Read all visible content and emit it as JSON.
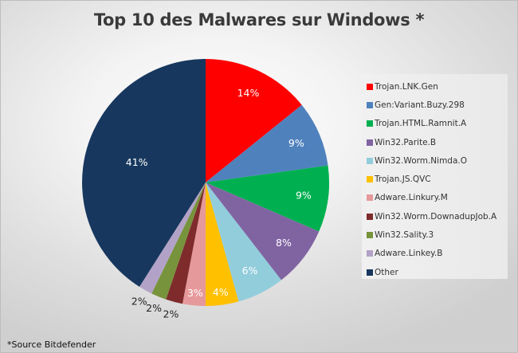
{
  "chart_data": {
    "type": "pie",
    "title": "Top 10 des Malwares sur Windows *",
    "footnote": "*Source Bitdefender",
    "legend_position": "right",
    "start_angle_deg": 0,
    "direction": "clockwise",
    "slices": [
      {
        "label": "Trojan.LNK.Gen",
        "value": 14.2,
        "display": "14%",
        "color": "#ff0000",
        "label_color": "#ffffff"
      },
      {
        "label": "Gen:Variant.Buzy.298",
        "value": 8.6,
        "display": "9%",
        "color": "#4f81bd",
        "label_color": "#ffffff"
      },
      {
        "label": "Trojan.HTML.Ramnit.A",
        "value": 8.7,
        "display": "9%",
        "color": "#00b050",
        "label_color": "#ffffff"
      },
      {
        "label": "Win32.Parite.B",
        "value": 8.0,
        "display": "8%",
        "color": "#8064a2",
        "label_color": "#ffffff"
      },
      {
        "label": "Win32.Worm.Nimda.O",
        "value": 6.2,
        "display": "6%",
        "color": "#92cddc",
        "label_color": "#ffffff"
      },
      {
        "label": "Trojan.JS.QVC",
        "value": 4.3,
        "display": "4%",
        "color": "#ffc000",
        "label_color": "#ffffff"
      },
      {
        "label": "Adware.Linkury.M",
        "value": 3.0,
        "display": "3%",
        "color": "#e6999b",
        "label_color": "#ffffff"
      },
      {
        "label": "Win32.Worm.DownadupJob.A",
        "value": 2.2,
        "display": "2%",
        "color": "#7f2b2b",
        "label_color": "#222222"
      },
      {
        "label": "Win32.Sality.3",
        "value": 2.0,
        "display": "2%",
        "color": "#77933c",
        "label_color": "#222222"
      },
      {
        "label": "Adware.Linkey.B",
        "value": 1.8,
        "display": "2%",
        "color": "#b3a2c7",
        "label_color": "#222222"
      },
      {
        "label": "Other",
        "value": 41.0,
        "display": "41%",
        "color": "#17375e",
        "label_color": "#ffffff"
      }
    ]
  }
}
